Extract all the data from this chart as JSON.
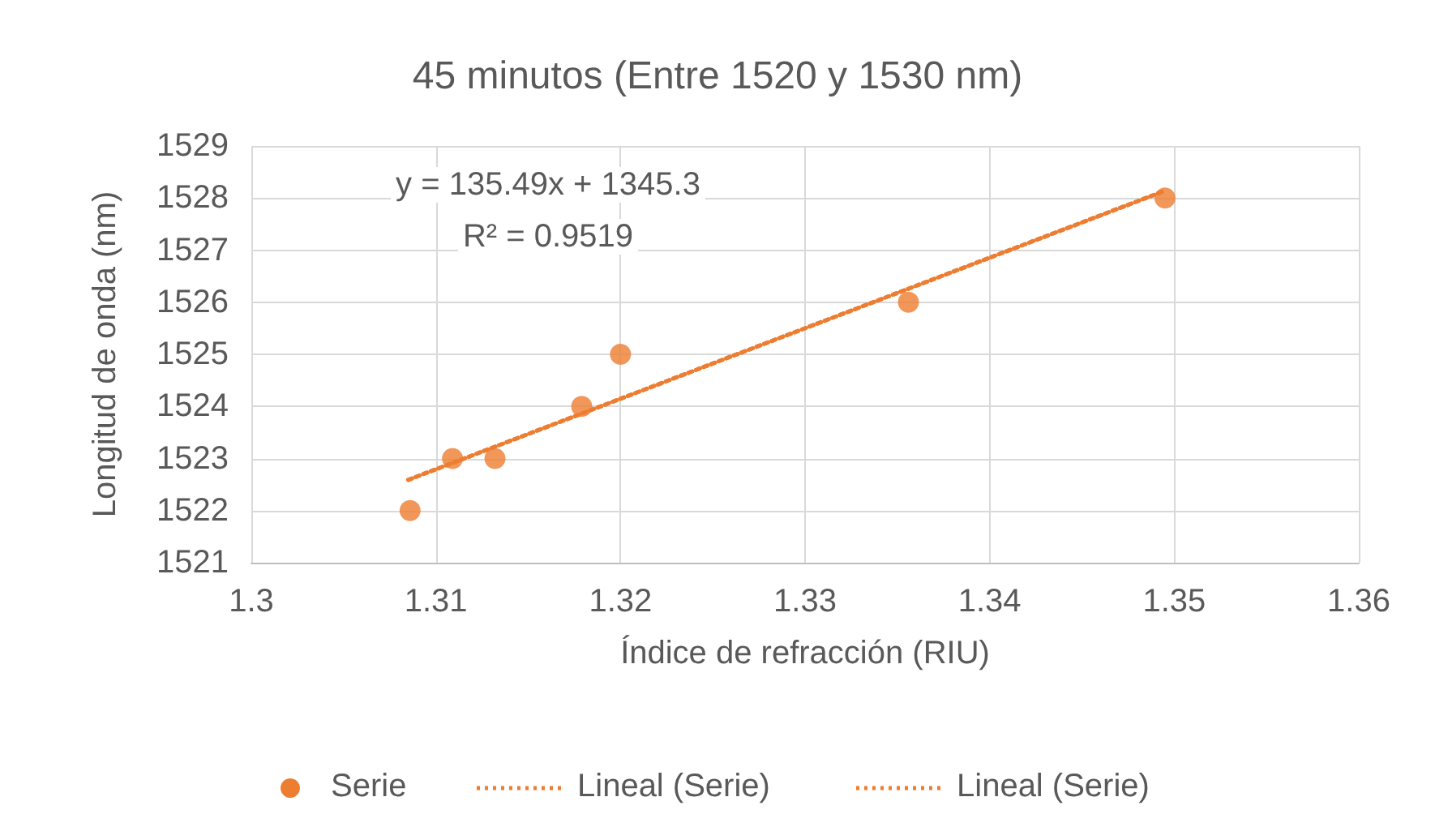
{
  "chart_data": {
    "type": "scatter",
    "title": "45 minutos (Entre 1520 y 1530 nm)",
    "xlabel": "Índice de refracción (RIU)",
    "ylabel": "Longitud de onda (nm)",
    "xlim": [
      1.3,
      1.36
    ],
    "xticks": [
      1.3,
      1.31,
      1.32,
      1.33,
      1.34,
      1.35,
      1.36
    ],
    "ylim": [
      1521,
      1529
    ],
    "yticks": [
      1521,
      1522,
      1523,
      1524,
      1525,
      1526,
      1527,
      1528,
      1529
    ],
    "grid": true,
    "legend": "bottom",
    "marker": "circle",
    "annotations": [
      "y = 135.49x + 1345.3",
      "R² = 0.9519"
    ],
    "series": [
      {
        "name": "Serie",
        "color": "#ed7d31",
        "x": [
          1.3086,
          1.3109,
          1.3132,
          1.3179,
          1.32,
          1.3356,
          1.3495
        ],
        "values": [
          1522,
          1523,
          1523,
          1524,
          1525,
          1526,
          1528
        ]
      },
      {
        "name": "Lineal (Serie)",
        "type": "line",
        "line_style": "dotted",
        "marker": "none",
        "color": "#ed7d31",
        "x": [
          1.3085,
          1.3495
        ],
        "values": [
          1522.59,
          1528.14
        ]
      },
      {
        "name": "Lineal (Serie)",
        "type": "line",
        "line_style": "dotted",
        "marker": "none",
        "color": "#ed7d31",
        "x": [
          1.3085,
          1.3495
        ],
        "values": [
          1522.59,
          1528.14
        ]
      }
    ]
  }
}
